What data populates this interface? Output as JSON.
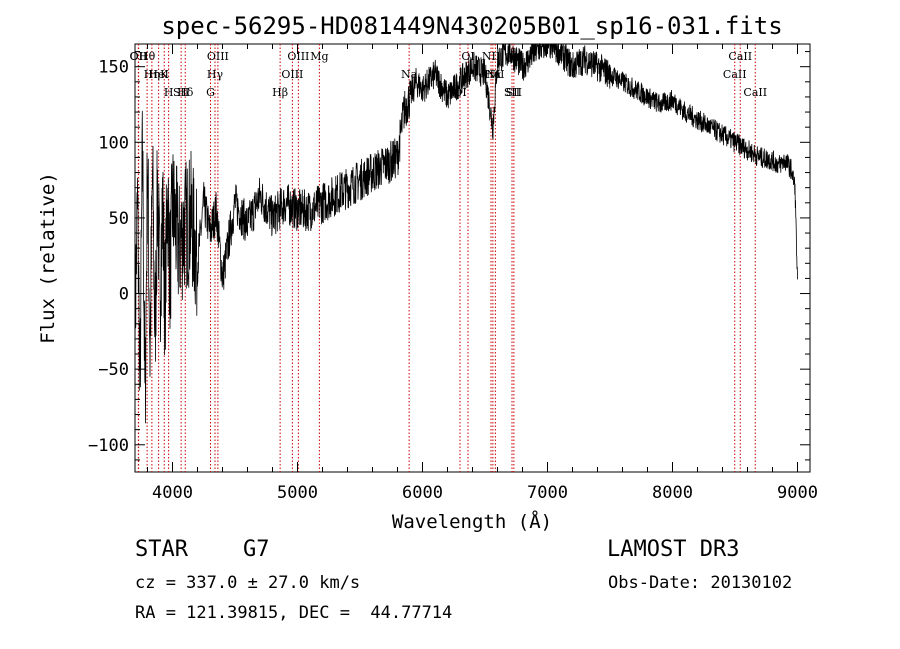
{
  "chart_data": {
    "type": "line",
    "title": "spec-56295-HD081449N430205B01_sp16-031.fits",
    "xlabel": "Wavelength (Å)",
    "ylabel": "Flux (relative)",
    "xlim": [
      3700,
      9100
    ],
    "ylim": [
      -118,
      165
    ],
    "x_ticks": [
      4000,
      5000,
      6000,
      7000,
      8000,
      9000
    ],
    "y_ticks": [
      -100,
      -50,
      0,
      50,
      100,
      150
    ],
    "grid": false,
    "series": [
      {
        "name": "flux",
        "x": [
          3700,
          3720,
          3740,
          3760,
          3780,
          3800,
          3820,
          3840,
          3860,
          3880,
          3900,
          3920,
          3940,
          3960,
          3980,
          4000,
          4050,
          4100,
          4150,
          4200,
          4250,
          4300,
          4350,
          4400,
          4500,
          4600,
          4700,
          4800,
          4900,
          5000,
          5100,
          5200,
          5300,
          5400,
          5500,
          5600,
          5700,
          5800,
          5850,
          5900,
          5950,
          6000,
          6100,
          6200,
          6300,
          6400,
          6500,
          6563,
          6600,
          6700,
          6800,
          6900,
          7000,
          7100,
          7200,
          7300,
          7400,
          7500,
          7600,
          7700,
          7800,
          7900,
          8000,
          8100,
          8200,
          8300,
          8400,
          8500,
          8600,
          8700,
          8800,
          8850,
          8900,
          8950,
          8980,
          9000
        ],
        "y": [
          -20,
          60,
          -60,
          100,
          -80,
          90,
          -40,
          80,
          -30,
          70,
          0,
          60,
          -10,
          70,
          10,
          60,
          30,
          45,
          50,
          20,
          60,
          40,
          55,
          10,
          60,
          45,
          65,
          50,
          60,
          55,
          55,
          60,
          65,
          70,
          75,
          80,
          85,
          90,
          120,
          130,
          140,
          135,
          145,
          130,
          140,
          150,
          145,
          110,
          155,
          160,
          150,
          160,
          165,
          160,
          150,
          155,
          150,
          145,
          140,
          135,
          130,
          125,
          128,
          120,
          115,
          110,
          105,
          100,
          95,
          90,
          88,
          85,
          88,
          82,
          70,
          5
        ]
      }
    ],
    "spectral_lines": [
      {
        "label": "Hθ",
        "wavelength": 3797
      },
      {
        "label": "K",
        "wavelength": 3934
      },
      {
        "label": "Hδ",
        "wavelength": 4102
      },
      {
        "label": "OII",
        "wavelength": 3727
      },
      {
        "label": "HeI",
        "wavelength": 3889
      },
      {
        "label": "SII",
        "wavelength": 4069
      },
      {
        "label": "OII",
        "wavelength": 3729
      },
      {
        "label": "Hη",
        "wavelength": 3835
      },
      {
        "label": "H",
        "wavelength": 3969
      },
      {
        "label": "OIII",
        "wavelength": 4363
      },
      {
        "label": "Hγ",
        "wavelength": 4340
      },
      {
        "label": "G",
        "wavelength": 4304
      },
      {
        "label": "OIII",
        "wavelength": 5007
      },
      {
        "label": "OIII",
        "wavelength": 4959
      },
      {
        "label": "Hβ",
        "wavelength": 4861
      },
      {
        "label": "Mg",
        "wavelength": 5175
      },
      {
        "label": "Na",
        "wavelength": 5893
      },
      {
        "label": "OI",
        "wavelength": 6300
      },
      {
        "label": "OI",
        "wavelength": 6364
      },
      {
        "label": "Hα",
        "wavelength": 6563
      },
      {
        "label": "SII",
        "wavelength": 6716
      },
      {
        "label": "NII",
        "wavelength": 6548
      },
      {
        "label": "NII",
        "wavelength": 6583
      },
      {
        "label": "SII",
        "wavelength": 6731
      },
      {
        "label": "CaII",
        "wavelength": 8542
      },
      {
        "label": "CaII",
        "wavelength": 8498
      },
      {
        "label": "CaII",
        "wavelength": 8662
      }
    ]
  },
  "info": {
    "object_class": "STAR",
    "subclass": "G7",
    "survey": "LAMOST DR3",
    "redshift": "cz = 337.0 ± 27.0 km/s",
    "obs_date": "Obs-Date: 20130102",
    "coords": "RA = 121.39815, DEC =  44.77714"
  }
}
